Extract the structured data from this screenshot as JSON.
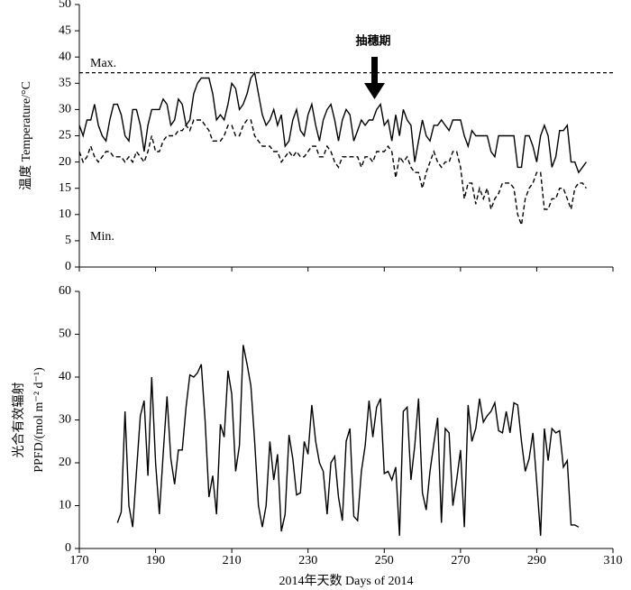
{
  "chart_data": [
    {
      "type": "line",
      "ylabel": [
        "温度 Temperature/°C"
      ],
      "xlim": [
        170,
        310
      ],
      "xticks": [
        170,
        190,
        210,
        230,
        250,
        270,
        290,
        310
      ],
      "ylim": [
        0,
        50
      ],
      "yticks": [
        0,
        5,
        10,
        15,
        20,
        25,
        30,
        35,
        40,
        45,
        50
      ],
      "reference_line": {
        "value": 37,
        "label": "Max.",
        "style": "dashed",
        "color": "#000000"
      },
      "annotations": [
        {
          "text": "Min."
        },
        {
          "text": "抽穗期",
          "arrow": true
        }
      ],
      "series": [
        {
          "color": "#000000",
          "style": "solid",
          "x": [
            170,
            171,
            172,
            173,
            174,
            175,
            176,
            177,
            178,
            179,
            180,
            181,
            182,
            183,
            184,
            185,
            186,
            187,
            188,
            189,
            190,
            191,
            192,
            193,
            194,
            195,
            196,
            197,
            198,
            199,
            200,
            201,
            202,
            203,
            204,
            205,
            206,
            207,
            208,
            209,
            210,
            211,
            212,
            213,
            214,
            215,
            216,
            217,
            218,
            219,
            220,
            221,
            222,
            223,
            224,
            225,
            226,
            227,
            228,
            229,
            230,
            231,
            232,
            233,
            234,
            235,
            236,
            237,
            238,
            239,
            240,
            241,
            242,
            243,
            244,
            245,
            246,
            247,
            248,
            249,
            250,
            251,
            252,
            253,
            254,
            255,
            256,
            257,
            258,
            259,
            260,
            261,
            262,
            263,
            264,
            265,
            266,
            267,
            268,
            269,
            270,
            271,
            272,
            273,
            274,
            275,
            276,
            277,
            278,
            279,
            280,
            281,
            282,
            283,
            284,
            285,
            286,
            287,
            288,
            289,
            290,
            291,
            292,
            293,
            294,
            295,
            296,
            297,
            298,
            299,
            300,
            301,
            302,
            303
          ],
          "values": [
            27,
            25,
            28,
            28,
            31,
            27,
            25,
            24,
            28,
            31,
            31,
            29,
            25,
            24,
            30,
            30,
            27,
            22,
            27,
            30,
            30,
            30,
            32,
            31,
            27,
            28,
            32,
            31,
            27,
            28,
            33,
            35,
            36,
            36,
            36,
            33,
            28,
            29,
            28,
            31,
            35,
            34,
            30,
            31,
            33,
            36,
            37,
            33,
            29,
            27,
            28,
            30,
            27,
            29,
            23,
            24,
            28,
            30,
            26,
            25,
            29,
            31,
            27,
            24,
            28,
            30,
            31,
            28,
            24,
            28,
            30,
            29,
            24,
            26,
            28,
            27,
            28,
            28,
            30,
            31,
            27,
            28,
            24,
            29,
            25,
            30,
            28,
            27,
            20,
            24,
            28,
            25,
            24,
            27,
            27,
            28,
            27,
            26,
            28,
            28,
            28,
            25,
            23,
            26,
            25,
            25,
            25,
            25,
            22,
            21,
            25,
            25,
            25,
            25,
            25,
            19,
            19,
            25,
            25,
            23,
            20,
            25,
            27,
            25,
            19,
            21,
            26,
            26,
            27,
            20,
            20,
            18,
            19,
            20
          ]
        },
        {
          "color": "#000000",
          "style": "dashed",
          "x": [
            170,
            171,
            172,
            173,
            174,
            175,
            176,
            177,
            178,
            179,
            180,
            181,
            182,
            183,
            184,
            185,
            186,
            187,
            188,
            189,
            190,
            191,
            192,
            193,
            194,
            195,
            196,
            197,
            198,
            199,
            200,
            201,
            202,
            203,
            204,
            205,
            206,
            207,
            208,
            209,
            210,
            211,
            212,
            213,
            214,
            215,
            216,
            217,
            218,
            219,
            220,
            221,
            222,
            223,
            224,
            225,
            226,
            227,
            228,
            229,
            230,
            231,
            232,
            233,
            234,
            235,
            236,
            237,
            238,
            239,
            240,
            241,
            242,
            243,
            244,
            245,
            246,
            247,
            248,
            249,
            250,
            251,
            252,
            253,
            254,
            255,
            256,
            257,
            258,
            259,
            260,
            261,
            262,
            263,
            264,
            265,
            266,
            267,
            268,
            269,
            270,
            271,
            272,
            273,
            274,
            275,
            276,
            277,
            278,
            279,
            280,
            281,
            282,
            283,
            284,
            285,
            286,
            287,
            288,
            289,
            290,
            291,
            292,
            293,
            294,
            295,
            296,
            297,
            298,
            299,
            300,
            301,
            302,
            303
          ],
          "values": [
            22,
            20,
            21,
            23,
            21,
            20,
            21,
            22,
            22,
            21,
            21,
            21,
            20,
            21,
            20,
            22,
            21,
            20,
            22,
            25,
            22,
            22,
            24,
            25,
            25,
            25,
            26,
            26,
            27,
            26,
            28,
            28,
            28,
            27,
            26,
            24,
            24,
            24,
            25,
            27,
            27,
            25,
            25,
            27,
            28,
            28,
            25,
            24,
            23,
            23,
            23,
            22,
            22,
            20,
            21,
            22,
            21,
            22,
            21,
            21,
            22,
            23,
            23,
            21,
            21,
            23,
            22,
            20,
            19,
            21,
            21,
            21,
            21,
            21,
            19,
            21,
            21,
            20,
            22,
            22,
            22,
            23,
            22,
            17,
            21,
            20,
            21,
            19,
            18,
            18,
            15,
            18,
            20,
            22,
            20,
            19,
            20,
            20,
            22,
            22,
            19,
            13,
            16,
            16,
            12,
            15,
            13,
            15,
            11,
            13,
            14,
            16,
            16,
            16,
            15,
            10,
            8,
            13,
            15,
            16,
            18,
            18,
            11,
            11,
            13,
            13,
            15,
            15,
            13,
            11,
            15,
            16,
            16,
            15
          ]
        }
      ]
    },
    {
      "type": "line",
      "xlabel": "2014年天数 Days of 2014",
      "ylabel": [
        "光合有效辐射",
        "PPFD/(mol m⁻² d⁻¹)"
      ],
      "xlim": [
        170,
        310
      ],
      "xticks": [
        170,
        190,
        210,
        230,
        250,
        270,
        290,
        310
      ],
      "ylim": [
        0,
        60
      ],
      "yticks": [
        0,
        10,
        20,
        30,
        40,
        50,
        60
      ],
      "series": [
        {
          "color": "#000000",
          "style": "solid",
          "x": [
            180,
            181,
            182,
            183,
            184,
            185,
            186,
            187,
            188,
            189,
            190,
            191,
            192,
            193,
            194,
            195,
            196,
            197,
            198,
            199,
            200,
            201,
            202,
            203,
            204,
            205,
            206,
            207,
            208,
            209,
            210,
            211,
            212,
            213,
            214,
            215,
            216,
            217,
            218,
            219,
            220,
            221,
            222,
            223,
            224,
            225,
            226,
            227,
            228,
            229,
            230,
            231,
            232,
            233,
            234,
            235,
            236,
            237,
            238,
            239,
            240,
            241,
            242,
            243,
            244,
            245,
            246,
            247,
            248,
            249,
            250,
            251,
            252,
            253,
            254,
            255,
            256,
            257,
            258,
            259,
            260,
            261,
            262,
            263,
            264,
            265,
            266,
            267,
            268,
            269,
            270,
            271,
            272,
            273,
            274,
            275,
            276,
            277,
            278,
            279,
            280,
            281,
            282,
            283,
            284,
            285,
            286,
            287,
            288,
            289,
            290,
            291,
            292,
            293,
            294,
            295,
            296,
            297,
            298,
            299,
            300,
            301
          ],
          "values": [
            6,
            8.5,
            32,
            10,
            5,
            18,
            31,
            34.5,
            17,
            40,
            20,
            8,
            22,
            35.5,
            21,
            15,
            23,
            23,
            33,
            40.5,
            40,
            41,
            43,
            30,
            12,
            17,
            8,
            29,
            26,
            41.5,
            36,
            18,
            24,
            47.5,
            43,
            38,
            25,
            10,
            5,
            10,
            25,
            16,
            22,
            4,
            8,
            26.5,
            21,
            12.5,
            13,
            25,
            22,
            33.5,
            25,
            20,
            18,
            8,
            20,
            21.5,
            12,
            6.5,
            25,
            28,
            7.5,
            6.5,
            18,
            24,
            34.5,
            26,
            33,
            35,
            17.5,
            18,
            16,
            19,
            3,
            32,
            33,
            16,
            24,
            35,
            13,
            9,
            18,
            24.5,
            30.5,
            6,
            28,
            27,
            10,
            16,
            23,
            5,
            33.5,
            25,
            28,
            35,
            29.5,
            31,
            32,
            34,
            27.5,
            27,
            32,
            27,
            34,
            33.5,
            25,
            18,
            21,
            27,
            15.5,
            3,
            28,
            20.5,
            28,
            27,
            27.5,
            19,
            20.5,
            5.5,
            5.5,
            5
          ]
        }
      ]
    }
  ]
}
